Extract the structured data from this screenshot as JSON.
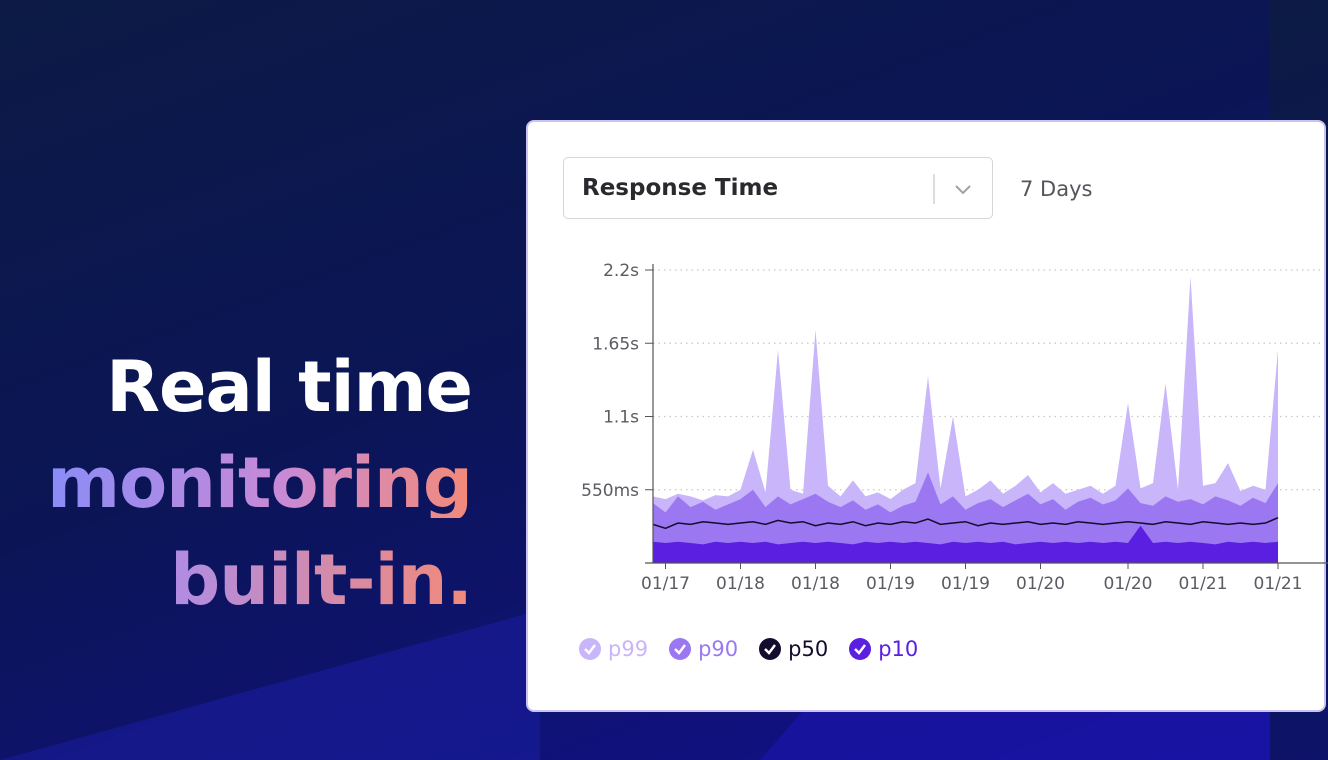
{
  "headline": {
    "line1": "Real time",
    "line2": "monitoring",
    "line3": "built-in."
  },
  "card": {
    "metric_select": "Response Time",
    "range": "7 Days"
  },
  "chart_data": {
    "type": "area",
    "categories": [
      null,
      "01/17",
      null,
      null,
      null,
      null,
      null,
      "01/18",
      null,
      null,
      null,
      null,
      null,
      "01/18",
      null,
      null,
      null,
      null,
      null,
      "01/19",
      null,
      null,
      null,
      null,
      null,
      "01/19",
      null,
      null,
      null,
      null,
      null,
      "01/20",
      null,
      null,
      null,
      null,
      null,
      null,
      "01/20",
      null,
      null,
      null,
      null,
      null,
      "01/21",
      null,
      null,
      null,
      null,
      null,
      "01/21"
    ],
    "series": [
      {
        "name": "p99",
        "color": "#c9b5fa",
        "values": [
          0.5,
          0.48,
          0.52,
          0.5,
          0.47,
          0.51,
          0.5,
          0.55,
          0.85,
          0.53,
          1.6,
          0.55,
          0.52,
          1.75,
          0.58,
          0.5,
          0.62,
          0.5,
          0.53,
          0.48,
          0.55,
          0.6,
          1.4,
          0.56,
          1.1,
          0.5,
          0.55,
          0.62,
          0.52,
          0.58,
          0.66,
          0.53,
          0.6,
          0.52,
          0.55,
          0.58,
          0.52,
          0.58,
          1.2,
          0.56,
          0.6,
          1.35,
          0.55,
          2.15,
          0.58,
          0.6,
          0.75,
          0.54,
          0.58,
          0.55,
          1.6
        ]
      },
      {
        "name": "p90",
        "color": "#9b78f1",
        "values": [
          0.45,
          0.38,
          0.5,
          0.42,
          0.46,
          0.4,
          0.44,
          0.48,
          0.55,
          0.42,
          0.5,
          0.44,
          0.48,
          0.52,
          0.46,
          0.42,
          0.47,
          0.4,
          0.44,
          0.38,
          0.43,
          0.46,
          0.68,
          0.44,
          0.5,
          0.4,
          0.45,
          0.48,
          0.42,
          0.47,
          0.52,
          0.44,
          0.48,
          0.4,
          0.46,
          0.49,
          0.44,
          0.47,
          0.56,
          0.45,
          0.43,
          0.5,
          0.46,
          0.48,
          0.44,
          0.5,
          0.47,
          0.43,
          0.49,
          0.45,
          0.6
        ]
      },
      {
        "name": "p50",
        "color": "#140c2e",
        "values": [
          0.29,
          0.26,
          0.3,
          0.29,
          0.31,
          0.3,
          0.29,
          0.3,
          0.31,
          0.29,
          0.32,
          0.3,
          0.31,
          0.28,
          0.3,
          0.29,
          0.31,
          0.28,
          0.3,
          0.29,
          0.31,
          0.3,
          0.33,
          0.29,
          0.3,
          0.31,
          0.28,
          0.3,
          0.29,
          0.3,
          0.31,
          0.29,
          0.3,
          0.29,
          0.31,
          0.3,
          0.29,
          0.3,
          0.31,
          0.3,
          0.29,
          0.31,
          0.3,
          0.29,
          0.31,
          0.3,
          0.29,
          0.3,
          0.29,
          0.3,
          0.34
        ]
      },
      {
        "name": "p10",
        "color": "#5a1fe0",
        "values": [
          0.16,
          0.15,
          0.16,
          0.15,
          0.14,
          0.16,
          0.15,
          0.16,
          0.15,
          0.16,
          0.14,
          0.15,
          0.16,
          0.15,
          0.16,
          0.15,
          0.14,
          0.16,
          0.15,
          0.16,
          0.15,
          0.16,
          0.15,
          0.14,
          0.16,
          0.15,
          0.16,
          0.15,
          0.16,
          0.14,
          0.15,
          0.16,
          0.15,
          0.16,
          0.15,
          0.16,
          0.15,
          0.16,
          0.15,
          0.28,
          0.15,
          0.16,
          0.15,
          0.16,
          0.15,
          0.14,
          0.16,
          0.15,
          0.16,
          0.15,
          0.16
        ]
      }
    ],
    "ylim": [
      0,
      2.2
    ],
    "yticks": [
      {
        "value": 0.55,
        "label": "550ms"
      },
      {
        "value": 1.1,
        "label": "1.1s"
      },
      {
        "value": 1.65,
        "label": "1.65s"
      },
      {
        "value": 2.2,
        "label": "2.2s"
      }
    ],
    "grid": true
  }
}
